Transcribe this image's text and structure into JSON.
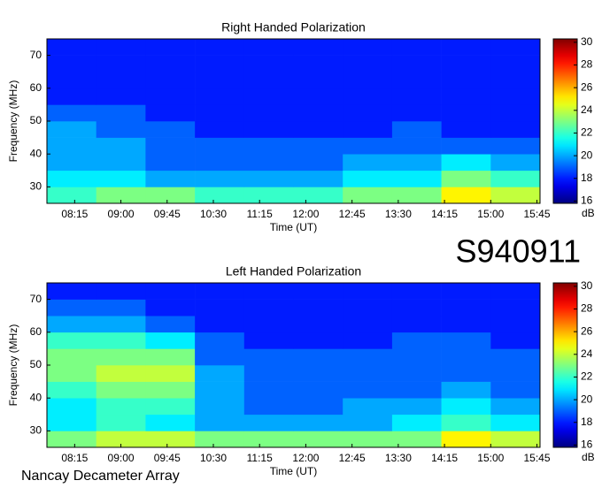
{
  "id_label": "S940911",
  "footer": "Nancay Decameter Array",
  "chart_data": [
    {
      "type": "heatmap",
      "title": "Right Handed Polarization",
      "xlabel": "Time (UT)",
      "ylabel": "Frequency (MHz)",
      "colorbar_label": "dB",
      "colormap": "jet",
      "x_bins": [
        7.8,
        8.6,
        9.4,
        10.2,
        11.0,
        11.8,
        12.6,
        13.4,
        14.2,
        15.0,
        15.8
      ],
      "y_bins": [
        25,
        30,
        35,
        40,
        45,
        50,
        55,
        60,
        65,
        70,
        75
      ],
      "z": [
        [
          22,
          23,
          23,
          22,
          22,
          22,
          23,
          23,
          25,
          24
        ],
        [
          21,
          21,
          20,
          20,
          20,
          20,
          21,
          21,
          23,
          22
        ],
        [
          20,
          20,
          19,
          19,
          19,
          19,
          20,
          20,
          21,
          20
        ],
        [
          20,
          20,
          19,
          19,
          19,
          19,
          19,
          19,
          19,
          19
        ],
        [
          20,
          19,
          19,
          18,
          18,
          18,
          18,
          19,
          18,
          18
        ],
        [
          19,
          19,
          18,
          18,
          18,
          18,
          18,
          18,
          18,
          18
        ],
        [
          18,
          18,
          18,
          18,
          18,
          18,
          18,
          18,
          18,
          18
        ],
        [
          18,
          18,
          18,
          18,
          18,
          18,
          18,
          18,
          18,
          18
        ],
        [
          18,
          18,
          18,
          18,
          18,
          18,
          18,
          18,
          18,
          18
        ],
        [
          18,
          18,
          18,
          18,
          18,
          18,
          18,
          18,
          18,
          18
        ]
      ],
      "xlim": [
        7.8,
        15.8
      ],
      "ylim": [
        25,
        75
      ],
      "clim": [
        15.8,
        30.3
      ],
      "xticks": [
        {
          "value": 8.25,
          "label": "08:15"
        },
        {
          "value": 9,
          "label": "09:00"
        },
        {
          "value": 9.75,
          "label": "09:45"
        },
        {
          "value": 10.5,
          "label": "10:30"
        },
        {
          "value": 11.25,
          "label": "11:15"
        },
        {
          "value": 12,
          "label": "12:00"
        },
        {
          "value": 12.75,
          "label": "12:45"
        },
        {
          "value": 13.5,
          "label": "13:30"
        },
        {
          "value": 14.25,
          "label": "14:15"
        },
        {
          "value": 15,
          "label": "15:00"
        },
        {
          "value": 15.75,
          "label": "15:45"
        }
      ],
      "yticks": [
        30,
        40,
        50,
        60,
        70
      ],
      "cticks": [
        16,
        18,
        20,
        22,
        24,
        26,
        28,
        30
      ]
    },
    {
      "type": "heatmap",
      "title": "Left Handed Polarization",
      "xlabel": "Time (UT)",
      "ylabel": "Frequency (MHz)",
      "colorbar_label": "dB",
      "colormap": "jet",
      "x_bins": [
        7.8,
        8.6,
        9.4,
        10.2,
        11.0,
        11.8,
        12.6,
        13.4,
        14.2,
        15.0,
        15.8
      ],
      "y_bins": [
        25,
        30,
        35,
        40,
        45,
        50,
        55,
        60,
        65,
        70,
        75
      ],
      "z": [
        [
          23,
          24,
          24,
          23,
          23,
          23,
          23,
          23,
          25,
          24
        ],
        [
          21,
          22,
          21,
          20,
          20,
          20,
          20,
          21,
          22,
          21
        ],
        [
          21,
          22,
          22,
          20,
          19,
          19,
          20,
          20,
          21,
          20
        ],
        [
          22,
          23,
          23,
          20,
          19,
          19,
          19,
          19,
          20,
          19
        ],
        [
          23,
          24,
          24,
          20,
          19,
          19,
          19,
          19,
          19,
          19
        ],
        [
          23,
          23,
          23,
          19,
          19,
          19,
          19,
          19,
          19,
          19
        ],
        [
          22,
          22,
          21,
          19,
          18,
          18,
          18,
          19,
          19,
          18
        ],
        [
          20,
          20,
          19,
          18,
          18,
          18,
          18,
          18,
          18,
          18
        ],
        [
          19,
          19,
          18,
          18,
          18,
          18,
          18,
          18,
          18,
          18
        ],
        [
          18,
          18,
          18,
          18,
          18,
          18,
          18,
          18,
          18,
          18
        ]
      ],
      "xlim": [
        7.8,
        15.8
      ],
      "ylim": [
        25,
        75
      ],
      "clim": [
        15.8,
        30.3
      ],
      "xticks": [
        {
          "value": 8.25,
          "label": "08:15"
        },
        {
          "value": 9,
          "label": "09:00"
        },
        {
          "value": 9.75,
          "label": "09:45"
        },
        {
          "value": 10.5,
          "label": "10:30"
        },
        {
          "value": 11.25,
          "label": "11:15"
        },
        {
          "value": 12,
          "label": "12:00"
        },
        {
          "value": 12.75,
          "label": "12:45"
        },
        {
          "value": 13.5,
          "label": "13:30"
        },
        {
          "value": 14.25,
          "label": "14:15"
        },
        {
          "value": 15,
          "label": "15:00"
        },
        {
          "value": 15.75,
          "label": "15:45"
        }
      ],
      "yticks": [
        30,
        40,
        50,
        60,
        70
      ],
      "cticks": [
        16,
        18,
        20,
        22,
        24,
        26,
        28,
        30
      ]
    }
  ]
}
